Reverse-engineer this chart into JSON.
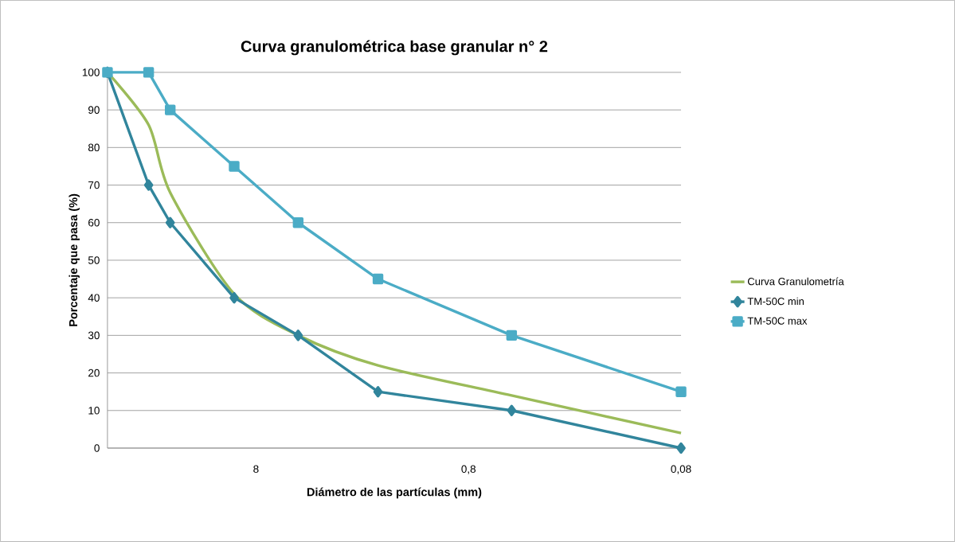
{
  "chart_data": {
    "type": "line",
    "title": "Curva granulométrica base granular n° 2",
    "xlabel": "Diámetro de las partículas (mm)",
    "ylabel": "Porcentaje  que pasa  (%)",
    "log": "x",
    "xlim": [
      37.5,
      0.075
    ],
    "xticks": [
      {
        "value": 7.5,
        "label": "8"
      },
      {
        "value": 0.75,
        "label": "0,8"
      },
      {
        "value": 0.075,
        "label": "0,08"
      }
    ],
    "ylim": [
      0,
      100
    ],
    "yticks": [
      0,
      10,
      20,
      30,
      40,
      50,
      60,
      70,
      80,
      90,
      100
    ],
    "grid": "y",
    "legend": "right",
    "line_style": "solid",
    "series": [
      {
        "name": "Curva Granulometría",
        "color": "#9bbb59",
        "marker": "none",
        "x": [
          37.5,
          24,
          19,
          9.5,
          4.75,
          2,
          0.47,
          0.075
        ],
        "values": [
          100,
          86,
          68,
          41,
          30,
          22,
          14,
          4
        ]
      },
      {
        "name": "TM-50C  min",
        "color": "#31859c",
        "marker": "diamond",
        "x": [
          37.5,
          24,
          19,
          9.5,
          4.75,
          2,
          0.47,
          0.075
        ],
        "values": [
          100,
          70,
          60,
          40,
          30,
          15,
          10,
          0
        ]
      },
      {
        "name": "TM-50C  max",
        "color": "#4bacc6",
        "marker": "square",
        "x": [
          37.5,
          24,
          19,
          9.5,
          4.75,
          2,
          0.47,
          0.075
        ],
        "values": [
          100,
          100,
          90,
          75,
          60,
          45,
          30,
          15
        ]
      }
    ]
  }
}
